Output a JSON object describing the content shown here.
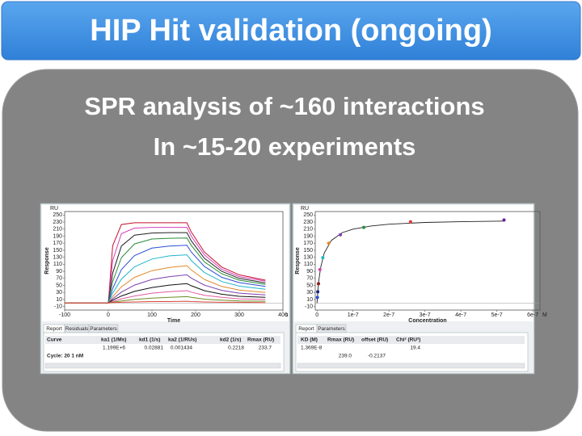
{
  "header": {
    "title": "HIP Hit validation (ongoing)"
  },
  "body": {
    "lines": [
      "SPR analysis of ~160 interactions",
      "In ~15-20 experiments"
    ]
  },
  "chart_data": [
    {
      "type": "line",
      "ylabel": "Response",
      "xlabel": "Time",
      "yunit": "RU",
      "xunit": "s",
      "x": [
        -100,
        0,
        10,
        30,
        60,
        100,
        140,
        180,
        190,
        220,
        260,
        300,
        360
      ],
      "xlim": [
        -100,
        400
      ],
      "xticks": [
        -100,
        0,
        100,
        200,
        300,
        400
      ],
      "ylim": [
        -20,
        260
      ],
      "yticks": [
        -10,
        10,
        30,
        50,
        70,
        90,
        110,
        130,
        150,
        170,
        190,
        210,
        230,
        250
      ],
      "series": [
        {
          "color": "#c8102e",
          "values": [
            0,
            0,
            163,
            223,
            228,
            228,
            228,
            228,
            202,
            145,
            102,
            80,
            65
          ]
        },
        {
          "color": "#d63fb8",
          "values": [
            0,
            0,
            121,
            197,
            213,
            215,
            215,
            215,
            190,
            137,
            96,
            75,
            62
          ]
        },
        {
          "color": "#222222",
          "values": [
            0,
            0,
            85,
            162,
            193,
            199,
            200,
            200,
            177,
            127,
            90,
            70,
            57
          ]
        },
        {
          "color": "#2a8c3a",
          "values": [
            0,
            0,
            61,
            129,
            168,
            182,
            184,
            185,
            164,
            117,
            83,
            65,
            53
          ]
        },
        {
          "color": "#2b4fd6",
          "values": [
            0,
            0,
            41,
            95,
            135,
            156,
            162,
            164,
            145,
            104,
            73,
            58,
            47
          ]
        },
        {
          "color": "#1fb5c9",
          "values": [
            0,
            0,
            28,
            68,
            103,
            125,
            134,
            137,
            121,
            87,
            61,
            48,
            39
          ]
        },
        {
          "color": "#e0882a",
          "values": [
            0,
            0,
            18,
            46,
            73,
            92,
            101,
            106,
            94,
            67,
            47,
            37,
            30
          ]
        },
        {
          "color": "#7a3fb0",
          "values": [
            0,
            0,
            12,
            31,
            51,
            67,
            75,
            80,
            71,
            51,
            36,
            28,
            23
          ]
        },
        {
          "color": "#111111",
          "values": [
            0,
            0,
            8,
            20,
            33,
            44,
            51,
            55,
            49,
            35,
            25,
            19,
            16
          ]
        },
        {
          "color": "#e25aa0",
          "values": [
            0,
            0,
            4,
            12,
            20,
            28,
            32,
            35,
            31,
            22,
            16,
            12,
            10
          ]
        },
        {
          "color": "#6b8e23",
          "values": [
            0,
            0,
            2,
            6,
            10,
            14,
            16,
            18,
            16,
            11,
            8,
            6,
            5
          ]
        },
        {
          "color": "#d9463a",
          "values": [
            0,
            0,
            1,
            2,
            3,
            4,
            4,
            5,
            4,
            3,
            2,
            2,
            1
          ]
        }
      ]
    },
    {
      "type": "scatter",
      "ylabel": "Response",
      "xlabel": "Concentration",
      "yunit": "RU",
      "xunit": "M",
      "x": [
        1e-09,
        2e-09,
        4e-09,
        8e-09,
        1.6e-08,
        3.25e-08,
        6.5e-08,
        1.3e-07,
        2.6e-07,
        5.2e-07
      ],
      "values": [
        16,
        32,
        55,
        95,
        129,
        170,
        194,
        215,
        231,
        236
      ],
      "point_colors": [
        "#2b4fd6",
        "#1a237e",
        "#8b1a1a",
        "#d63fb8",
        "#1fb5c9",
        "#e0882a",
        "#7a3fb0",
        "#2a8c3a",
        "#e53935",
        "#6a1b9a"
      ],
      "fit": {
        "color": "#222222",
        "x": [
          0,
          2e-09,
          5e-09,
          1e-08,
          2e-08,
          4e-08,
          7e-08,
          1e-07,
          1.5e-07,
          2e-07,
          3e-07,
          4e-07,
          5.2e-07
        ],
        "values": [
          0,
          30,
          64,
          101,
          142,
          178,
          200,
          210,
          219,
          224,
          229,
          231,
          233
        ]
      },
      "xlim": [
        -5e-09,
        6.2e-07
      ],
      "xticks": [
        0,
        1e-07,
        2e-07,
        3e-07,
        4e-07,
        5e-07,
        6e-07
      ],
      "ylim": [
        -20,
        260
      ],
      "yticks": [
        -10,
        10,
        30,
        50,
        70,
        90,
        110,
        130,
        150,
        170,
        190,
        210,
        230,
        250
      ]
    }
  ],
  "tables": [
    {
      "tabs": [
        "Report",
        "Residuals",
        "Parameters"
      ],
      "headers": [
        "Curve",
        "ka1 (1/Ms)",
        "kd1 (1/s)",
        "ka2 (1/RUs)",
        "kd2 (1/s)",
        "Rmax (RU)"
      ],
      "rows": [
        [
          null,
          "1.199E+6",
          "0.02881",
          "0.001434",
          "0.2218",
          "233.7"
        ]
      ],
      "footer": "Cycle: 20 1 nM"
    },
    {
      "tabs": [
        "Report",
        "Parameters"
      ],
      "headers": [
        "KD (M)",
        "Rmax (RU)",
        "offset (RU)",
        "Chi² (RU²)"
      ],
      "rows": [
        [
          "1.369E-8",
          null,
          null,
          "19.4"
        ],
        [
          null,
          "239.0",
          "-0.2137",
          null
        ]
      ]
    }
  ]
}
